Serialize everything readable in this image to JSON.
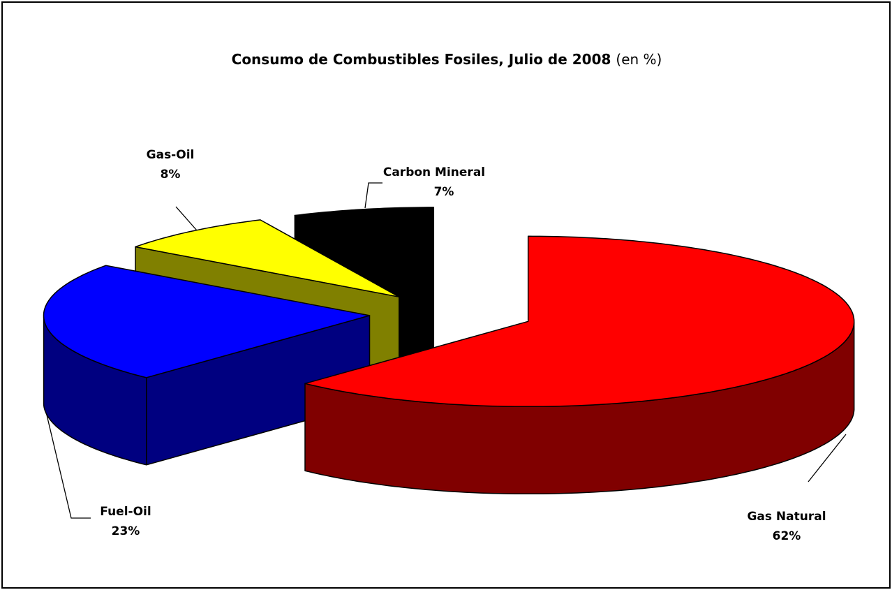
{
  "chart_data": {
    "type": "pie3d",
    "title": "Consumo de Combustibles Fosiles, Julio de 2008",
    "subtitle": "(en %)",
    "categories": [
      "Gas Natural",
      "Fuel-Oil",
      "Gas-Oil",
      "Carbon Mineral"
    ],
    "values": [
      62,
      23,
      8,
      7
    ],
    "value_labels": [
      "62%",
      "23%",
      "8%",
      "7%"
    ],
    "colors": [
      "#ff0000",
      "#0000ff",
      "#ffff00",
      "#000000"
    ],
    "side_colors": [
      "#800000",
      "#000080",
      "#808000",
      "#000000"
    ]
  }
}
